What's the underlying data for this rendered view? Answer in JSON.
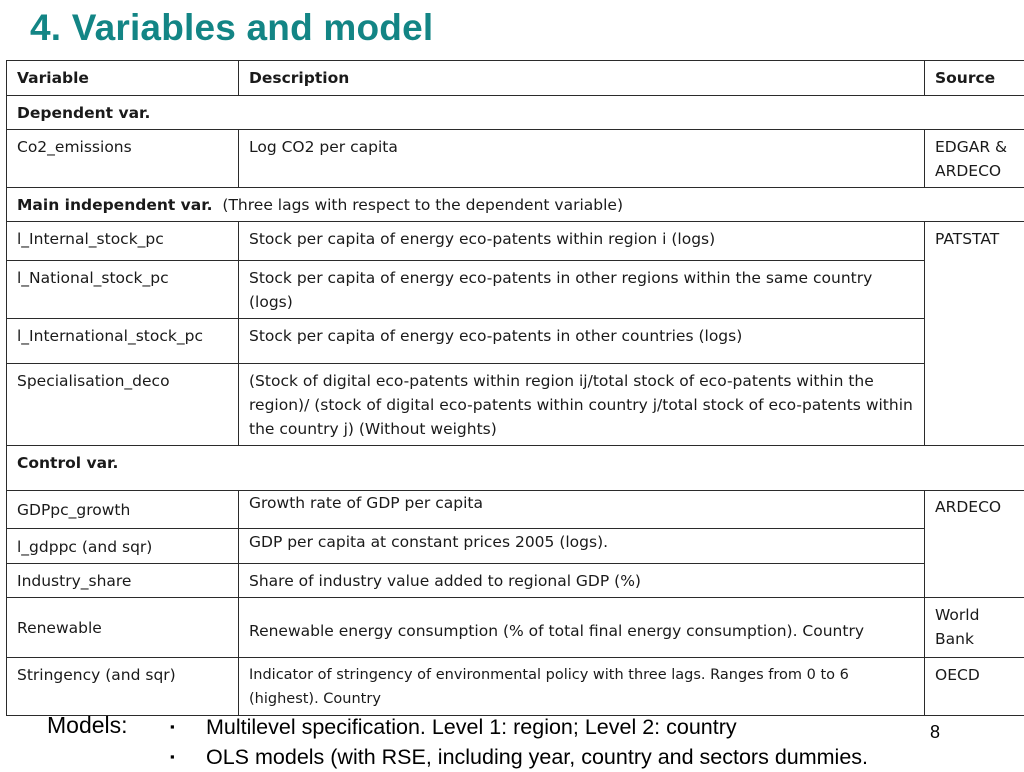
{
  "title": "4. Variables and model",
  "table": {
    "headers": {
      "variable": "Variable",
      "description": "Description",
      "source": "Source"
    },
    "sections": {
      "dependent": {
        "label": "Dependent var."
      },
      "main_independent": {
        "label": "Main independent var.",
        "note": "(Three lags with respect to the dependent variable)"
      },
      "control": {
        "label": "Control var."
      }
    },
    "rows": {
      "co2": {
        "variable": "Co2_emissions",
        "description": "Log CO2 per capita",
        "source": "EDGAR & ARDECO"
      },
      "internal": {
        "variable": "l_Internal_stock_pc",
        "description": "Stock per capita of energy eco-patents within region i (logs)",
        "source": "PATSTAT"
      },
      "national": {
        "variable": "l_National_stock_pc",
        "description": "Stock per capita of energy eco-patents in other regions within the same country (logs)"
      },
      "international": {
        "variable": "l_International_stock_pc",
        "description": "Stock per capita of energy eco-patents in other countries (logs)"
      },
      "specialisation": {
        "variable": "Specialisation_deco",
        "description": "(Stock of digital eco-patents within region ij/total stock of eco-patents within the region)/ (stock of digital eco-patents within country j/total stock of eco-patents within the country j) (Without weights)"
      },
      "gdppc_growth": {
        "variable": "GDPpc_growth",
        "description": "Growth rate of GDP per capita",
        "source": "ARDECO"
      },
      "gdppc": {
        "variable": "l_gdppc (and sqr)",
        "description": "GDP per capita at constant prices 2005 (logs)."
      },
      "industry": {
        "variable": "Industry_share",
        "description": "Share of industry value added to regional GDP (%)"
      },
      "renewable": {
        "variable": "Renewable",
        "description": "Renewable energy consumption   (% of total final energy consumption). Country",
        "source": "World Bank"
      },
      "stringency": {
        "variable": "Stringency (and sqr)",
        "description": "Indicator of stringency of environmental policy with three lags. Ranges from 0 to 6 (highest). Country",
        "source": "OECD"
      }
    }
  },
  "models": {
    "label": "Models:",
    "bullet_marker": "▪",
    "items": [
      "Multilevel specification. Level 1: region; Level 2: country",
      "OLS models (with RSE, including year, country and sectors dummies."
    ]
  },
  "page_number": "8",
  "colors": {
    "title": "#138585",
    "border": "#2b2b2b"
  }
}
